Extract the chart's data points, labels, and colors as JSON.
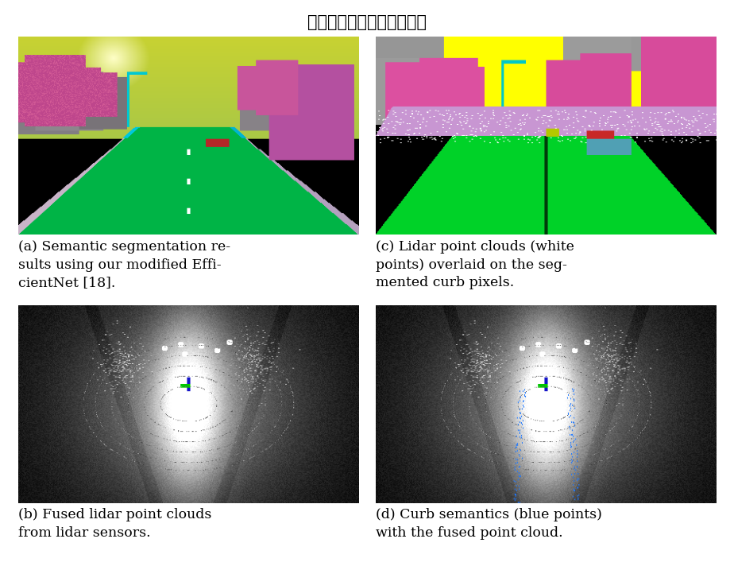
{
  "title": "多模态路沿检测与滤波方法",
  "title_fontsize": 15,
  "title_color": "#000000",
  "background_color": "#ffffff",
  "captions": [
    "(a) Semantic segmentation re-\nsults using our modified Effi-\ncientNet [18].",
    "(c) Lidar point clouds (white\npoints) overlaid on the seg-\nmented curb pixels.",
    "(b) Fused lidar point clouds\nfrom lidar sensors.",
    "(d) Curb semantics (blue points)\nwith the fused point cloud."
  ],
  "caption_fontsize": 12.5
}
